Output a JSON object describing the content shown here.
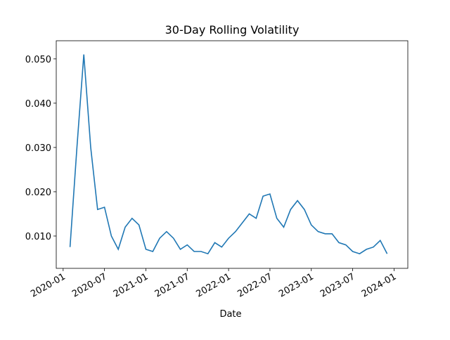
{
  "chart_data": {
    "type": "line",
    "title": "30-Day Rolling Volatility",
    "x_label": "Date",
    "x": [
      "2020-02",
      "2020-03",
      "2020-04",
      "2020-05",
      "2020-06",
      "2020-07",
      "2020-08",
      "2020-09",
      "2020-10",
      "2020-11",
      "2020-12",
      "2021-01",
      "2021-02",
      "2021-03",
      "2021-04",
      "2021-05",
      "2021-06",
      "2021-07",
      "2021-08",
      "2021-09",
      "2021-10",
      "2021-11",
      "2021-12",
      "2022-01",
      "2022-02",
      "2022-03",
      "2022-04",
      "2022-05",
      "2022-06",
      "2022-07",
      "2022-08",
      "2022-09",
      "2022-10",
      "2022-11",
      "2022-12",
      "2023-01",
      "2023-02",
      "2023-03",
      "2023-04",
      "2023-05",
      "2023-06",
      "2023-07",
      "2023-08",
      "2023-09",
      "2023-10",
      "2023-11",
      "2023-12"
    ],
    "values": [
      0.0075,
      0.03,
      0.051,
      0.03,
      0.016,
      0.0165,
      0.01,
      0.007,
      0.012,
      0.014,
      0.0125,
      0.007,
      0.0065,
      0.0095,
      0.011,
      0.0095,
      0.007,
      0.008,
      0.0065,
      0.0065,
      0.006,
      0.0085,
      0.0075,
      0.0095,
      0.011,
      0.013,
      0.015,
      0.014,
      0.019,
      0.0195,
      0.014,
      0.012,
      0.016,
      0.018,
      0.016,
      0.0125,
      0.011,
      0.0105,
      0.0105,
      0.0085,
      0.008,
      0.0065,
      0.006,
      0.007,
      0.0075,
      0.009,
      0.006
    ],
    "color": "#1f77b4",
    "xlim": [
      "2019-12",
      "2024-03"
    ],
    "xticks": [
      "2020-01",
      "2020-07",
      "2021-01",
      "2021-07",
      "2022-01",
      "2022-07",
      "2023-01",
      "2023-07",
      "2024-01"
    ],
    "ylim": [
      0.0027,
      0.0541
    ],
    "yticks": [
      {
        "value": 0.01,
        "label": "0.010"
      },
      {
        "value": 0.02,
        "label": "0.020"
      },
      {
        "value": 0.03,
        "label": "0.030"
      },
      {
        "value": 0.04,
        "label": "0.040"
      },
      {
        "value": 0.05,
        "label": "0.050"
      }
    ]
  }
}
